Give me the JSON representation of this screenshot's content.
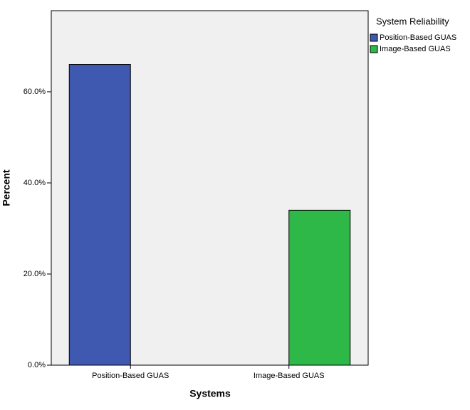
{
  "chart_data": {
    "type": "bar",
    "categories": [
      "Position-Based GUAS",
      "Image-Based GUAS"
    ],
    "series": [
      {
        "name": "Position-Based GUAS",
        "color": "#3f58b0",
        "values": [
          66,
          null
        ]
      },
      {
        "name": "Image-Based GUAS",
        "color": "#2db848",
        "values": [
          null,
          34
        ]
      }
    ],
    "xlabel": "Systems",
    "ylabel": "Percent",
    "legend_title": "System Reliability",
    "ylim": [
      0,
      77.8
    ],
    "yticks": [
      {
        "value": 0,
        "label": "0.0%"
      },
      {
        "value": 20,
        "label": "20.0%"
      },
      {
        "value": 40,
        "label": "40.0%"
      },
      {
        "value": 60,
        "label": "60.0%"
      }
    ],
    "grid": false,
    "legend": "right"
  }
}
